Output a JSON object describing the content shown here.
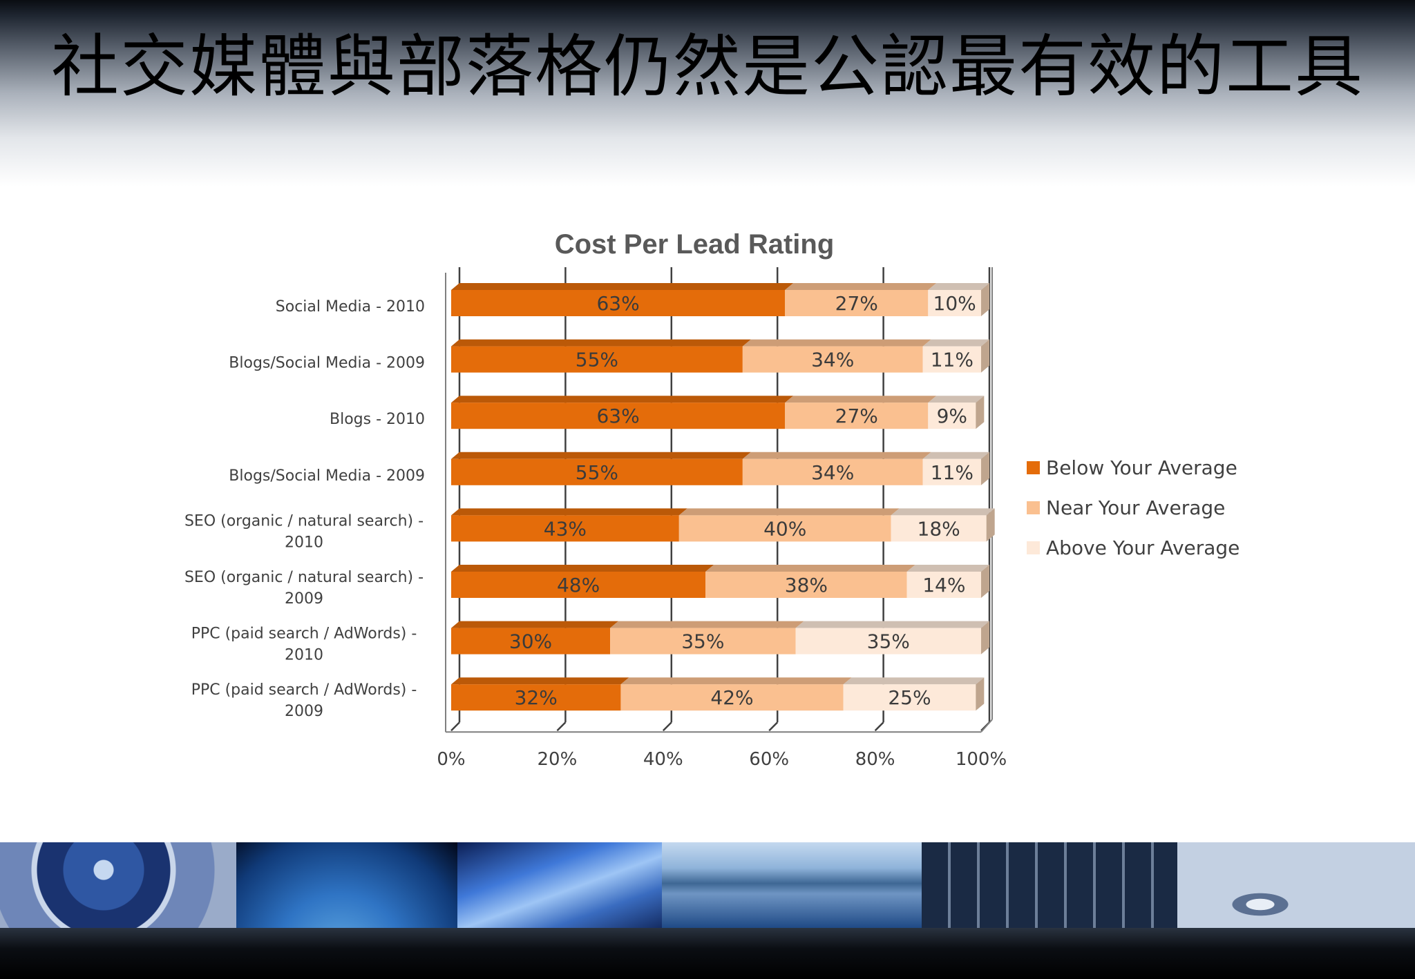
{
  "slide": {
    "title": "社交媒體與部落格仍然是公認最有效的工具"
  },
  "chart_data": {
    "type": "bar",
    "orientation": "horizontal",
    "stacked": true,
    "percent": true,
    "title": "Cost Per Lead Rating",
    "categories": [
      "Social Media - 2010",
      "Blogs/Social Media - 2009",
      "Blogs - 2010",
      "Blogs/Social Media - 2009",
      "SEO (organic / natural search) - 2010",
      "SEO (organic / natural search) - 2009",
      "PPC (paid search / AdWords) - 2010",
      "PPC (paid search / AdWords) - 2009"
    ],
    "category_lines": [
      [
        "Social Media - 2010"
      ],
      [
        "Blogs/Social Media - 2009"
      ],
      [
        "Blogs - 2010"
      ],
      [
        "Blogs/Social Media - 2009"
      ],
      [
        "SEO (organic / natural search) -",
        "2010"
      ],
      [
        "SEO (organic / natural search) -",
        "2009"
      ],
      [
        "PPC (paid search / AdWords) -",
        "2010"
      ],
      [
        "PPC (paid search / AdWords) -",
        "2009"
      ]
    ],
    "series": [
      {
        "name": "Below Your Average",
        "color": "#E46C0A",
        "values": [
          63,
          55,
          63,
          55,
          43,
          48,
          30,
          32
        ]
      },
      {
        "name": "Near Your Average",
        "color": "#FAC090",
        "values": [
          27,
          34,
          27,
          34,
          40,
          38,
          35,
          42
        ]
      },
      {
        "name": "Above Your Average",
        "color": "#FDE9D9",
        "values": [
          10,
          11,
          9,
          11,
          18,
          14,
          35,
          25
        ]
      }
    ],
    "xlim": [
      0,
      100
    ],
    "x_ticks": [
      "0%",
      "20%",
      "40%",
      "60%",
      "80%",
      "100%"
    ],
    "grid": true,
    "legend_position": "right",
    "data_labels": true
  },
  "colors": {
    "axis_text": "#404040",
    "title_text": "#595959",
    "gridline": "#404040"
  }
}
